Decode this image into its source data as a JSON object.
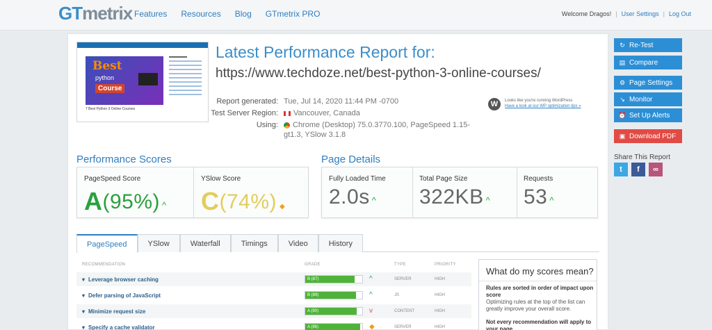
{
  "nav": {
    "logo_g": "GT",
    "logo_m": "metrix",
    "links": [
      "Features",
      "Resources",
      "Blog",
      "GTmetrix PRO"
    ],
    "welcome": "Welcome Dragos!",
    "user_settings": "User Settings",
    "sep": "|",
    "logout": "Log Out"
  },
  "thumb": {
    "best": "Best",
    "python": "python",
    "course": "Course",
    "caption": "7 Best Python 3 Online Courses"
  },
  "report": {
    "title": "Latest Performance Report for:",
    "url": "https://www.techdoze.net/best-python-3-online-courses/",
    "generated_label": "Report generated:",
    "generated_value": "Tue, Jul 14, 2020 11:44 PM -0700",
    "region_label": "Test Server Region:",
    "region_value": "Vancouver, Canada",
    "using_label": "Using:",
    "using_value": "Chrome (Desktop) 75.0.3770.100, PageSpeed 1.15-gt1.3, YSlow 3.1.8",
    "wp_line1": "Looks like you're running WordPress",
    "wp_line2": "Have a look at our WP optimization tips »"
  },
  "scores": {
    "title": "Performance Scores",
    "pagespeed_label": "PageSpeed Score",
    "pagespeed_grade": "A",
    "pagespeed_pct": "(95%)",
    "yslow_label": "YSlow Score",
    "yslow_grade": "C",
    "yslow_pct": "(74%)"
  },
  "details": {
    "title": "Page Details",
    "load_label": "Fully Loaded Time",
    "load_value": "2.0s",
    "size_label": "Total Page Size",
    "size_value": "322KB",
    "req_label": "Requests",
    "req_value": "53"
  },
  "tabs": [
    "PageSpeed",
    "YSlow",
    "Waterfall",
    "Timings",
    "Video",
    "History"
  ],
  "table": {
    "col_rec": "RECOMMENDATION",
    "col_grade": "GRADE",
    "col_type": "TYPE",
    "col_prio": "PRIORITY",
    "rows": [
      {
        "name": "Leverage browser caching",
        "grade": "B (87)",
        "pct": 87,
        "type": "SERVER",
        "prio": "HIGH",
        "trend": "up"
      },
      {
        "name": "Defer parsing of JavaScript",
        "grade": "B (89)",
        "pct": 89,
        "type": "JS",
        "prio": "HIGH",
        "trend": "up"
      },
      {
        "name": "Minimize request size",
        "grade": "A (90)",
        "pct": 90,
        "type": "CONTENT",
        "prio": "HIGH",
        "trend": "down"
      },
      {
        "name": "Specify a cache validator",
        "grade": "A (96)",
        "pct": 96,
        "type": "SERVER",
        "prio": "HIGH",
        "trend": "neutral"
      }
    ]
  },
  "help": {
    "title": "What do my scores mean?",
    "p1": "Rules are sorted in order of impact upon score",
    "p2": "Optimizing rules at the top of the list can greatly improve your overall score.",
    "p3": "Not every recommendation will apply to your page"
  },
  "sidebar": {
    "retest": "Re-Test",
    "compare": "Compare",
    "page_settings": "Page Settings",
    "monitor": "Monitor",
    "alerts": "Set Up Alerts",
    "pdf": "Download PDF",
    "share_title": "Share This Report"
  }
}
